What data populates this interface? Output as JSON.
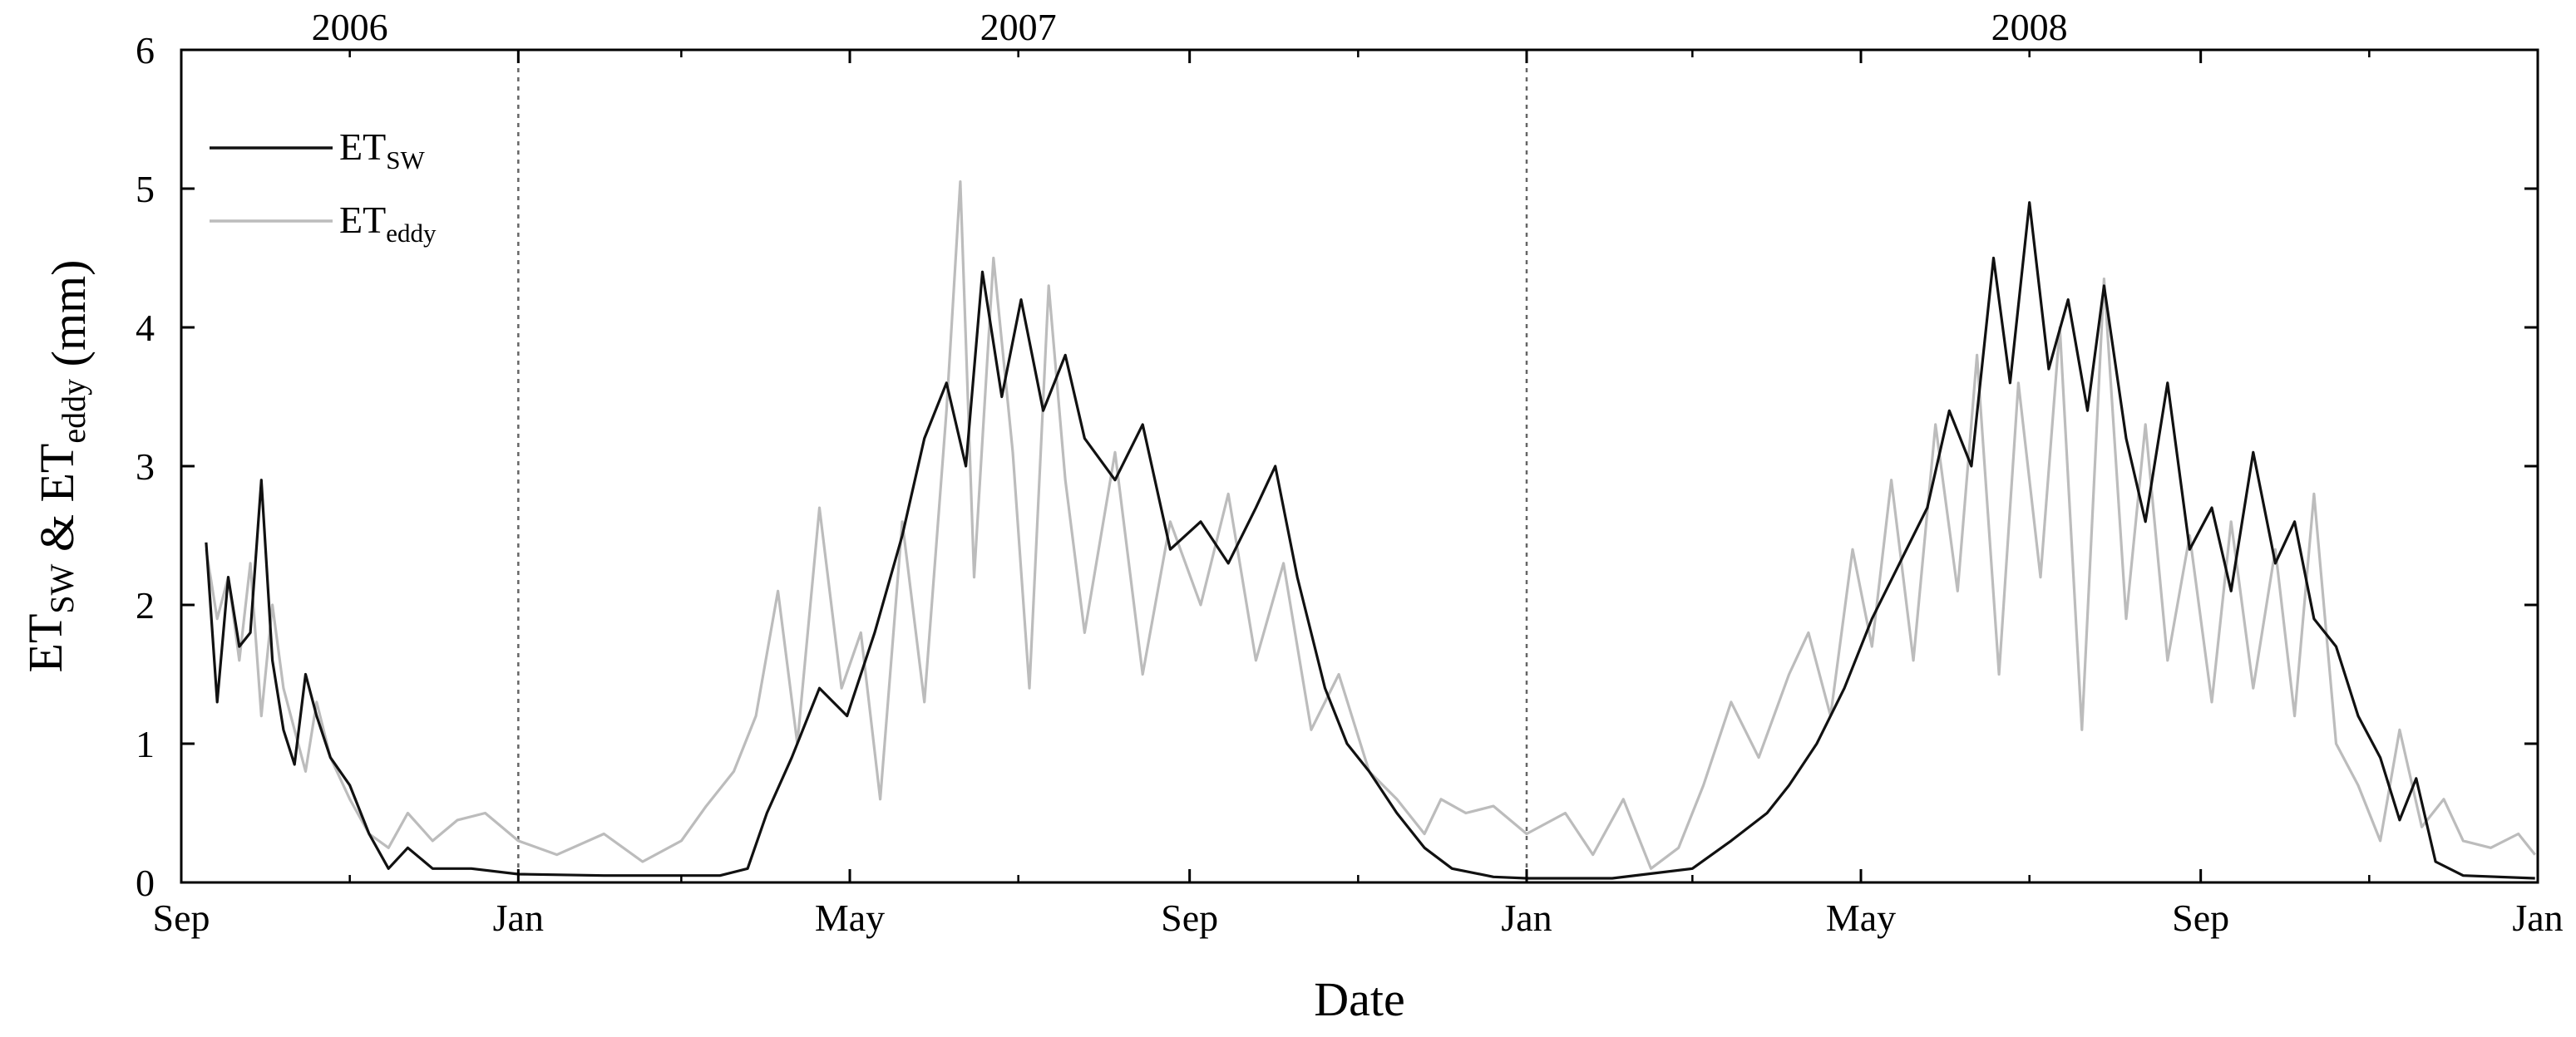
{
  "chart_data": {
    "type": "line",
    "title": "",
    "xlabel": "Date",
    "ylabel": {
      "parts": [
        {
          "text": "ET",
          "sub": "SW"
        },
        {
          "text": " & ET",
          "sub": "eddy"
        },
        {
          "text": " (mm)",
          "sub": ""
        }
      ]
    },
    "xlim": [
      "2006-09-01",
      "2009-01-01"
    ],
    "ylim": [
      0,
      6
    ],
    "y_ticks": [
      0,
      1,
      2,
      3,
      4,
      5,
      6
    ],
    "x_tick_labels": [
      {
        "date": "2006-09-01",
        "label": "Sep"
      },
      {
        "date": "2007-01-01",
        "label": "Jan"
      },
      {
        "date": "2007-05-01",
        "label": "May"
      },
      {
        "date": "2007-09-01",
        "label": "Sep"
      },
      {
        "date": "2008-01-01",
        "label": "Jan"
      },
      {
        "date": "2008-05-01",
        "label": "May"
      },
      {
        "date": "2008-09-01",
        "label": "Sep"
      },
      {
        "date": "2009-01-01",
        "label": "Jan"
      }
    ],
    "minor_x_tick_dates": [
      "2006-11-01",
      "2007-03-01",
      "2007-07-01",
      "2007-11-01",
      "2008-03-01",
      "2008-07-01",
      "2008-11-01"
    ],
    "year_labels": [
      {
        "text": "2006",
        "date": "2006-11-01"
      },
      {
        "text": "2007",
        "date": "2007-07-01"
      },
      {
        "text": "2008",
        "date": "2008-07-01"
      }
    ],
    "year_dividers": [
      "2007-01-01",
      "2008-01-01"
    ],
    "grid": false,
    "legend": "top-left",
    "series": [
      {
        "label": {
          "text": "ET",
          "sub": "SW"
        },
        "color": "#111111",
        "points": [
          [
            "2006-09-10",
            2.45
          ],
          [
            "2006-09-14",
            1.3
          ],
          [
            "2006-09-18",
            2.2
          ],
          [
            "2006-09-22",
            1.7
          ],
          [
            "2006-09-26",
            1.8
          ],
          [
            "2006-09-30",
            2.9
          ],
          [
            "2006-10-04",
            1.6
          ],
          [
            "2006-10-08",
            1.1
          ],
          [
            "2006-10-12",
            0.85
          ],
          [
            "2006-10-16",
            1.5
          ],
          [
            "2006-10-20",
            1.2
          ],
          [
            "2006-10-25",
            0.9
          ],
          [
            "2006-11-01",
            0.7
          ],
          [
            "2006-11-08",
            0.35
          ],
          [
            "2006-11-15",
            0.1
          ],
          [
            "2006-11-22",
            0.25
          ],
          [
            "2006-12-01",
            0.1
          ],
          [
            "2006-12-15",
            0.1
          ],
          [
            "2007-01-01",
            0.06
          ],
          [
            "2007-02-01",
            0.05
          ],
          [
            "2007-03-01",
            0.05
          ],
          [
            "2007-03-15",
            0.05
          ],
          [
            "2007-03-25",
            0.1
          ],
          [
            "2007-04-01",
            0.5
          ],
          [
            "2007-04-10",
            0.9
          ],
          [
            "2007-04-20",
            1.4
          ],
          [
            "2007-04-30",
            1.2
          ],
          [
            "2007-05-10",
            1.8
          ],
          [
            "2007-05-20",
            2.5
          ],
          [
            "2007-05-28",
            3.2
          ],
          [
            "2007-06-05",
            3.6
          ],
          [
            "2007-06-12",
            3.0
          ],
          [
            "2007-06-18",
            4.4
          ],
          [
            "2007-06-25",
            3.5
          ],
          [
            "2007-07-02",
            4.2
          ],
          [
            "2007-07-10",
            3.4
          ],
          [
            "2007-07-18",
            3.8
          ],
          [
            "2007-07-25",
            3.2
          ],
          [
            "2007-08-05",
            2.9
          ],
          [
            "2007-08-15",
            3.3
          ],
          [
            "2007-08-25",
            2.4
          ],
          [
            "2007-09-05",
            2.6
          ],
          [
            "2007-09-15",
            2.3
          ],
          [
            "2007-09-25",
            2.7
          ],
          [
            "2007-10-02",
            3.0
          ],
          [
            "2007-10-10",
            2.2
          ],
          [
            "2007-10-20",
            1.4
          ],
          [
            "2007-10-28",
            1.0
          ],
          [
            "2007-11-05",
            0.8
          ],
          [
            "2007-11-15",
            0.5
          ],
          [
            "2007-11-25",
            0.25
          ],
          [
            "2007-12-05",
            0.1
          ],
          [
            "2007-12-20",
            0.04
          ],
          [
            "2008-01-01",
            0.03
          ],
          [
            "2008-02-01",
            0.03
          ],
          [
            "2008-03-01",
            0.1
          ],
          [
            "2008-03-15",
            0.3
          ],
          [
            "2008-03-28",
            0.5
          ],
          [
            "2008-04-05",
            0.7
          ],
          [
            "2008-04-15",
            1.0
          ],
          [
            "2008-04-25",
            1.4
          ],
          [
            "2008-05-05",
            1.9
          ],
          [
            "2008-05-15",
            2.3
          ],
          [
            "2008-05-25",
            2.7
          ],
          [
            "2008-06-02",
            3.4
          ],
          [
            "2008-06-10",
            3.0
          ],
          [
            "2008-06-18",
            4.5
          ],
          [
            "2008-06-24",
            3.6
          ],
          [
            "2008-07-01",
            4.9
          ],
          [
            "2008-07-08",
            3.7
          ],
          [
            "2008-07-15",
            4.2
          ],
          [
            "2008-07-22",
            3.4
          ],
          [
            "2008-07-28",
            4.3
          ],
          [
            "2008-08-05",
            3.2
          ],
          [
            "2008-08-12",
            2.6
          ],
          [
            "2008-08-20",
            3.6
          ],
          [
            "2008-08-28",
            2.4
          ],
          [
            "2008-09-05",
            2.7
          ],
          [
            "2008-09-12",
            2.1
          ],
          [
            "2008-09-20",
            3.1
          ],
          [
            "2008-09-28",
            2.3
          ],
          [
            "2008-10-05",
            2.6
          ],
          [
            "2008-10-12",
            1.9
          ],
          [
            "2008-10-20",
            1.7
          ],
          [
            "2008-10-28",
            1.2
          ],
          [
            "2008-11-05",
            0.9
          ],
          [
            "2008-11-12",
            0.45
          ],
          [
            "2008-11-18",
            0.75
          ],
          [
            "2008-11-25",
            0.15
          ],
          [
            "2008-12-05",
            0.05
          ],
          [
            "2008-12-31",
            0.03
          ]
        ]
      },
      {
        "label": {
          "text": "ET",
          "sub": "eddy"
        },
        "color": "#bcbcbc",
        "points": [
          [
            "2006-09-10",
            2.4
          ],
          [
            "2006-09-14",
            1.9
          ],
          [
            "2006-09-18",
            2.2
          ],
          [
            "2006-09-22",
            1.6
          ],
          [
            "2006-09-26",
            2.3
          ],
          [
            "2006-09-30",
            1.2
          ],
          [
            "2006-10-04",
            2.0
          ],
          [
            "2006-10-08",
            1.4
          ],
          [
            "2006-10-12",
            1.1
          ],
          [
            "2006-10-16",
            0.8
          ],
          [
            "2006-10-20",
            1.3
          ],
          [
            "2006-10-25",
            0.9
          ],
          [
            "2006-11-01",
            0.6
          ],
          [
            "2006-11-08",
            0.35
          ],
          [
            "2006-11-15",
            0.25
          ],
          [
            "2006-11-22",
            0.5
          ],
          [
            "2006-12-01",
            0.3
          ],
          [
            "2006-12-10",
            0.45
          ],
          [
            "2006-12-20",
            0.5
          ],
          [
            "2007-01-01",
            0.3
          ],
          [
            "2007-01-15",
            0.2
          ],
          [
            "2007-02-01",
            0.35
          ],
          [
            "2007-02-15",
            0.15
          ],
          [
            "2007-03-01",
            0.3
          ],
          [
            "2007-03-10",
            0.55
          ],
          [
            "2007-03-20",
            0.8
          ],
          [
            "2007-03-28",
            1.2
          ],
          [
            "2007-04-05",
            2.1
          ],
          [
            "2007-04-12",
            1.0
          ],
          [
            "2007-04-20",
            2.7
          ],
          [
            "2007-04-28",
            1.4
          ],
          [
            "2007-05-05",
            1.8
          ],
          [
            "2007-05-12",
            0.6
          ],
          [
            "2007-05-20",
            2.6
          ],
          [
            "2007-05-28",
            1.3
          ],
          [
            "2007-06-05",
            3.4
          ],
          [
            "2007-06-10",
            5.05
          ],
          [
            "2007-06-15",
            2.2
          ],
          [
            "2007-06-22",
            4.5
          ],
          [
            "2007-06-29",
            3.1
          ],
          [
            "2007-07-05",
            1.4
          ],
          [
            "2007-07-12",
            4.3
          ],
          [
            "2007-07-18",
            2.9
          ],
          [
            "2007-07-25",
            1.8
          ],
          [
            "2007-08-05",
            3.1
          ],
          [
            "2007-08-15",
            1.5
          ],
          [
            "2007-08-25",
            2.6
          ],
          [
            "2007-09-05",
            2.0
          ],
          [
            "2007-09-15",
            2.8
          ],
          [
            "2007-09-25",
            1.6
          ],
          [
            "2007-10-05",
            2.3
          ],
          [
            "2007-10-15",
            1.1
          ],
          [
            "2007-10-25",
            1.5
          ],
          [
            "2007-11-05",
            0.8
          ],
          [
            "2007-11-15",
            0.6
          ],
          [
            "2007-11-25",
            0.35
          ],
          [
            "2007-12-01",
            0.6
          ],
          [
            "2007-12-10",
            0.5
          ],
          [
            "2007-12-20",
            0.55
          ],
          [
            "2008-01-01",
            0.35
          ],
          [
            "2008-01-15",
            0.5
          ],
          [
            "2008-01-25",
            0.2
          ],
          [
            "2008-02-05",
            0.6
          ],
          [
            "2008-02-15",
            0.1
          ],
          [
            "2008-02-25",
            0.25
          ],
          [
            "2008-03-05",
            0.7
          ],
          [
            "2008-03-15",
            1.3
          ],
          [
            "2008-03-25",
            0.9
          ],
          [
            "2008-04-05",
            1.5
          ],
          [
            "2008-04-12",
            1.8
          ],
          [
            "2008-04-20",
            1.2
          ],
          [
            "2008-04-28",
            2.4
          ],
          [
            "2008-05-05",
            1.7
          ],
          [
            "2008-05-12",
            2.9
          ],
          [
            "2008-05-20",
            1.6
          ],
          [
            "2008-05-28",
            3.3
          ],
          [
            "2008-06-05",
            2.1
          ],
          [
            "2008-06-12",
            3.8
          ],
          [
            "2008-06-20",
            1.5
          ],
          [
            "2008-06-27",
            3.6
          ],
          [
            "2008-07-05",
            2.2
          ],
          [
            "2008-07-12",
            4.0
          ],
          [
            "2008-07-20",
            1.1
          ],
          [
            "2008-07-28",
            4.35
          ],
          [
            "2008-08-05",
            1.9
          ],
          [
            "2008-08-12",
            3.3
          ],
          [
            "2008-08-20",
            1.6
          ],
          [
            "2008-08-28",
            2.5
          ],
          [
            "2008-09-05",
            1.3
          ],
          [
            "2008-09-12",
            2.6
          ],
          [
            "2008-09-20",
            1.4
          ],
          [
            "2008-09-28",
            2.4
          ],
          [
            "2008-10-05",
            1.2
          ],
          [
            "2008-10-12",
            2.8
          ],
          [
            "2008-10-20",
            1.0
          ],
          [
            "2008-10-28",
            0.7
          ],
          [
            "2008-11-05",
            0.3
          ],
          [
            "2008-11-12",
            1.1
          ],
          [
            "2008-11-20",
            0.4
          ],
          [
            "2008-11-28",
            0.6
          ],
          [
            "2008-12-05",
            0.3
          ],
          [
            "2008-12-15",
            0.25
          ],
          [
            "2008-12-25",
            0.35
          ],
          [
            "2008-12-31",
            0.2
          ]
        ]
      }
    ]
  }
}
